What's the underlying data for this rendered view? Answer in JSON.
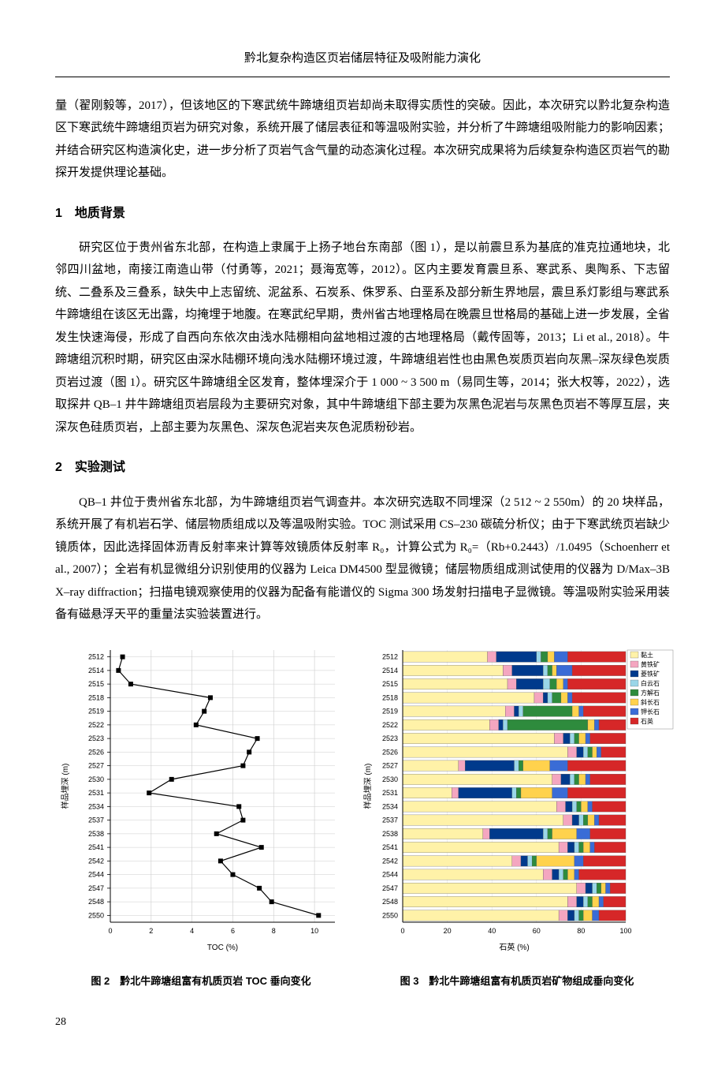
{
  "header_title": "黔北复杂构造区页岩储层特征及吸附能力演化",
  "intro_para": "量（翟刚毅等，2017），但该地区的下寒武统牛蹄塘组页岩却尚未取得实质性的突破。因此，本次研究以黔北复杂构造区下寒武统牛蹄塘组页岩为研究对象，系统开展了储层表征和等温吸附实验，并分析了牛蹄塘组吸附能力的影响因素；并结合研究区构造演化史，进一步分析了页岩气含气量的动态演化过程。本次研究成果将为后续复杂构造区页岩气的勘探开发提供理论基础。",
  "section1_title": "1　地质背景",
  "section1_para": "研究区位于贵州省东北部，在构造上隶属于上扬子地台东南部（图 1），是以前震旦系为基底的准克拉通地块，北邻四川盆地，南接江南造山带（付勇等，2021；聂海宽等，2012）。区内主要发育震旦系、寒武系、奥陶系、下志留统、二叠系及三叠系，缺失中上志留统、泥盆系、石炭系、侏罗系、白垩系及部分新生界地层，震旦系灯影组与寒武系牛蹄塘组在该区无出露，均掩埋于地腹。在寒武纪早期，贵州省古地理格局在晚震旦世格局的基础上进一步发展，全省发生快速海侵，形成了自西向东依次由浅水陆棚相向盆地相过渡的古地理格局（戴传固等，2013；Li et al., 2018）。牛蹄塘组沉积时期，研究区由深水陆棚环境向浅水陆棚环境过渡，牛蹄塘组岩性也由黑色炭质页岩向灰黑–深灰绿色炭质页岩过渡（图 1）。研究区牛蹄塘组全区发育，整体埋深介于 1 000 ~ 3 500 m（易同生等，2014；张大权等，2022），选取探井 QB–1 井牛蹄塘组页岩层段为主要研究对象，其中牛蹄塘组下部主要为灰黑色泥岩与灰黑色页岩不等厚互层，夹深灰色硅质页岩，上部主要为灰黑色、深灰色泥岩夹灰色泥质粉砂岩。",
  "section2_title": "2　实验测试",
  "section2_para": "QB–1 井位于贵州省东北部，为牛蹄塘组页岩气调查井。本次研究选取不同埋深（2 512 ~ 2 550m）的 20 块样品，系统开展了有机岩石学、储层物质组成以及等温吸附实验。TOC 测试采用 CS–230 碳硫分析仪；由于下寒武统页岩缺少镜质体，因此选择固体沥青反射率来计算等效镜质体反射率 R₀，计算公式为 R₀=（Rb+0.2443）/1.0495（Schoenherr et al., 2007）；全岩有机显微组分识别使用的仪器为 Leica DM4500 型显微镜；储层物质组成测试使用的仪器为 D/Max–3B X–ray diffraction；扫描电镜观察使用的仪器为配备有能谱仪的 Sigma 300 场发射扫描电子显微镜。等温吸附实验采用装备有磁悬浮天平的重量法实验装置进行。",
  "chart2": {
    "type": "line",
    "caption": "图 2　黔北牛蹄塘组富有机质页岩 TOC 垂向变化",
    "xlabel": "TOC (%)",
    "ylabel": "样品埋深 (m)",
    "xlim": [
      0,
      11
    ],
    "xtick_step": 2,
    "depths": [
      2512,
      2514,
      2515,
      2518,
      2519,
      2522,
      2523,
      2526,
      2527,
      2530,
      2531,
      2534,
      2537,
      2538,
      2541,
      2542,
      2544,
      2547,
      2548,
      2550
    ],
    "toc": [
      0.6,
      0.4,
      1.0,
      4.9,
      4.6,
      4.2,
      7.2,
      6.8,
      6.5,
      3.0,
      1.9,
      6.3,
      6.5,
      5.2,
      7.4,
      5.4,
      6.0,
      7.3,
      7.9,
      10.2
    ],
    "line_color": "#000000",
    "marker": "square",
    "marker_size": 6,
    "marker_fill": "#000000",
    "grid_color": "#cccccc",
    "axis_fontsize": 10,
    "tick_fontsize": 9,
    "background_color": "#ffffff"
  },
  "chart3": {
    "type": "stacked_bar_horizontal",
    "caption": "图 3　黔北牛蹄塘组富有机质页岩矿物组成垂向变化",
    "xlabel": "石英 (%)",
    "ylabel": "样品埋深 (m)",
    "xlim": [
      0,
      100
    ],
    "xtick_step": 20,
    "depths": [
      2512,
      2514,
      2515,
      2518,
      2519,
      2522,
      2523,
      2526,
      2527,
      2530,
      2531,
      2534,
      2537,
      2538,
      2541,
      2542,
      2544,
      2547,
      2548,
      2550
    ],
    "legend": [
      {
        "label": "黏土",
        "color": "#fff2a8"
      },
      {
        "label": "黄铁矿",
        "color": "#f4a6c0"
      },
      {
        "label": "菱铁矿",
        "color": "#003a8c"
      },
      {
        "label": "白云石",
        "color": "#9ad6e8"
      },
      {
        "label": "方解石",
        "color": "#2e8b3d"
      },
      {
        "label": "斜长石",
        "color": "#ffd24d"
      },
      {
        "label": "钾长石",
        "color": "#3a6cd6"
      },
      {
        "label": "石英",
        "color": "#d62728"
      }
    ],
    "stacks": [
      [
        38,
        4,
        18,
        2,
        3,
        3,
        6,
        26
      ],
      [
        45,
        4,
        14,
        2,
        2,
        2,
        7,
        24
      ],
      [
        47,
        4,
        12,
        3,
        3,
        3,
        2,
        26
      ],
      [
        59,
        4,
        2,
        2,
        4,
        3,
        2,
        24
      ],
      [
        46,
        4,
        2,
        2,
        22,
        3,
        2,
        19
      ],
      [
        39,
        4,
        2,
        2,
        36,
        3,
        2,
        12
      ],
      [
        68,
        4,
        3,
        2,
        2,
        3,
        2,
        16
      ],
      [
        74,
        4,
        3,
        2,
        2,
        2,
        2,
        11
      ],
      [
        25,
        3,
        22,
        2,
        2,
        12,
        8,
        26
      ],
      [
        67,
        4,
        4,
        2,
        2,
        3,
        2,
        16
      ],
      [
        22,
        3,
        24,
        2,
        2,
        14,
        7,
        26
      ],
      [
        69,
        4,
        3,
        2,
        2,
        3,
        2,
        15
      ],
      [
        72,
        4,
        3,
        2,
        2,
        3,
        2,
        12
      ],
      [
        36,
        3,
        24,
        2,
        2,
        11,
        6,
        16
      ],
      [
        70,
        4,
        3,
        2,
        2,
        3,
        2,
        14
      ],
      [
        49,
        4,
        3,
        2,
        2,
        17,
        4,
        19
      ],
      [
        63,
        4,
        3,
        2,
        2,
        3,
        2,
        21
      ],
      [
        78,
        4,
        3,
        2,
        2,
        2,
        2,
        7
      ],
      [
        74,
        4,
        3,
        2,
        2,
        3,
        2,
        10
      ],
      [
        70,
        4,
        3,
        2,
        2,
        4,
        3,
        12
      ]
    ],
    "axis_fontsize": 10,
    "tick_fontsize": 9,
    "background_color": "#ffffff"
  },
  "page_number": "28"
}
